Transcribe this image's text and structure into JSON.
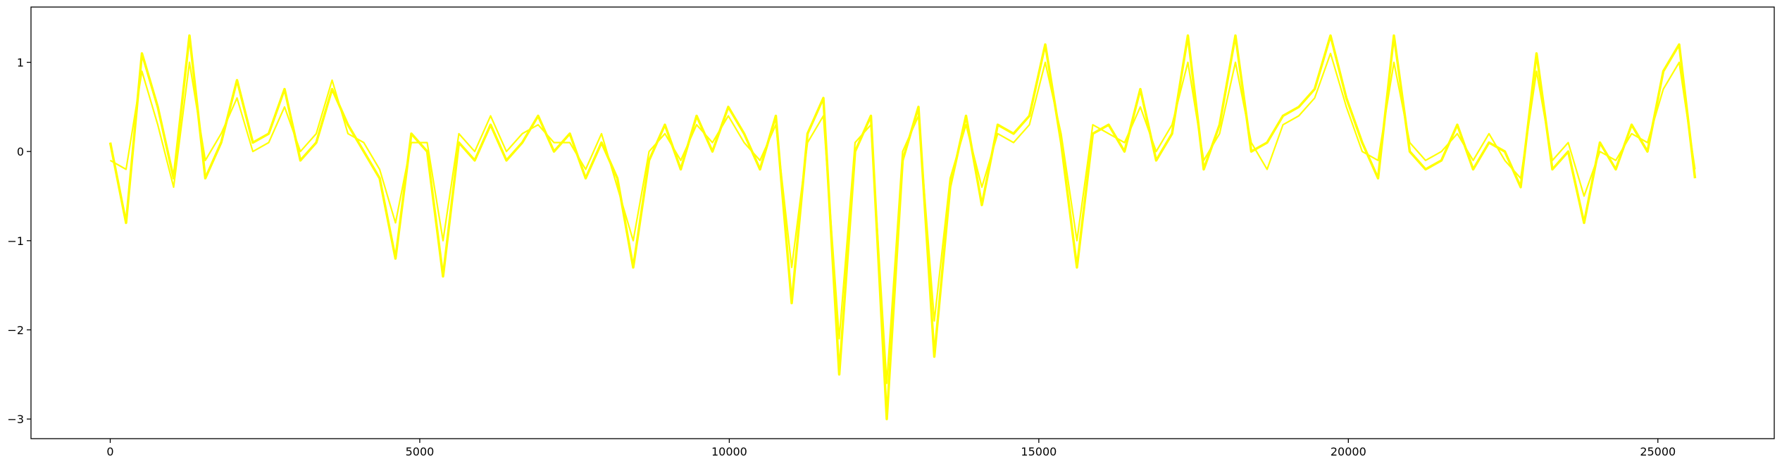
{
  "chart_data": {
    "type": "line",
    "x": [
      0,
      256,
      512,
      768,
      1024,
      1280,
      1536,
      1792,
      2048,
      2304,
      2560,
      2816,
      3072,
      3328,
      3584,
      3840,
      4096,
      4352,
      4608,
      4864,
      5120,
      5376,
      5632,
      5888,
      6144,
      6400,
      6656,
      6912,
      7168,
      7424,
      7680,
      7936,
      8192,
      8448,
      8704,
      8960,
      9216,
      9472,
      9728,
      9984,
      10240,
      10496,
      10752,
      11008,
      11264,
      11520,
      11776,
      12032,
      12288,
      12544,
      12800,
      13056,
      13312,
      13568,
      13824,
      14080,
      14336,
      14592,
      14848,
      15104,
      15360,
      15616,
      15872,
      16128,
      16384,
      16640,
      16896,
      17152,
      17408,
      17664,
      17920,
      18176,
      18432,
      18688,
      18944,
      19200,
      19456,
      19712,
      19968,
      20224,
      20480,
      20736,
      20992,
      21248,
      21504,
      21760,
      22016,
      22272,
      22528,
      22784,
      23040,
      23296,
      23552,
      23808,
      24064,
      24320,
      24576,
      24832,
      25088,
      25344,
      25600
    ],
    "series": [
      {
        "color": "#ffff00",
        "values": [
          0.1,
          -0.8,
          1.1,
          0.5,
          -0.3,
          1.3,
          -0.3,
          0.1,
          0.8,
          0.1,
          0.2,
          0.7,
          -0.1,
          0.1,
          0.7,
          0.3,
          0.0,
          -0.3,
          -1.2,
          0.2,
          0.0,
          -1.4,
          0.1,
          -0.1,
          0.3,
          -0.1,
          0.1,
          0.4,
          0.0,
          0.2,
          -0.3,
          0.1,
          -0.3,
          -1.3,
          -0.1,
          0.3,
          -0.2,
          0.4,
          0.0,
          0.5,
          0.2,
          -0.2,
          0.4,
          -1.7,
          0.2,
          0.6,
          -2.5,
          0.0,
          0.4,
          -3.0,
          -0.1,
          0.5,
          -2.3,
          -0.4,
          0.4,
          -0.6,
          0.3,
          0.2,
          0.4,
          1.2,
          0.1,
          -1.3,
          0.2,
          0.3,
          0.0,
          0.7,
          -0.1,
          0.2,
          1.3,
          -0.2,
          0.3,
          1.3,
          0.0,
          0.1,
          0.4,
          0.5,
          0.7,
          1.3,
          0.6,
          0.1,
          -0.3,
          1.3,
          0.0,
          -0.2,
          -0.1,
          0.3,
          -0.2,
          0.1,
          0.0,
          -0.4,
          1.1,
          -0.2,
          0.0,
          -0.8,
          0.1,
          -0.2,
          0.3,
          0.0,
          0.9,
          1.2,
          -0.3
        ]
      },
      {
        "color": "#ffff00",
        "values": [
          -0.1,
          -0.2,
          0.9,
          0.3,
          -0.4,
          1.0,
          -0.1,
          0.2,
          0.6,
          0.0,
          0.1,
          0.5,
          0.0,
          0.2,
          0.8,
          0.2,
          0.1,
          -0.2,
          -0.8,
          0.1,
          0.1,
          -1.0,
          0.2,
          0.0,
          0.4,
          0.0,
          0.2,
          0.3,
          0.1,
          0.1,
          -0.2,
          0.2,
          -0.4,
          -1.0,
          0.0,
          0.2,
          -0.1,
          0.3,
          0.1,
          0.4,
          0.1,
          -0.1,
          0.3,
          -1.3,
          0.1,
          0.4,
          -2.1,
          0.1,
          0.3,
          -2.6,
          0.0,
          0.4,
          -1.9,
          -0.3,
          0.3,
          -0.4,
          0.2,
          0.1,
          0.3,
          1.0,
          0.2,
          -1.0,
          0.3,
          0.2,
          0.1,
          0.5,
          0.0,
          0.3,
          1.0,
          -0.1,
          0.2,
          1.0,
          0.1,
          -0.2,
          0.3,
          0.4,
          0.6,
          1.1,
          0.5,
          0.0,
          -0.1,
          1.0,
          0.1,
          -0.1,
          0.0,
          0.2,
          -0.1,
          0.2,
          -0.1,
          -0.3,
          0.9,
          -0.1,
          0.1,
          -0.5,
          0.0,
          -0.1,
          0.2,
          0.1,
          0.7,
          1.0,
          -0.2
        ]
      }
    ],
    "xlim": [
      -1280,
      26880
    ],
    "ylim": [
      -3.22,
      1.62
    ],
    "xticks": [
      0,
      5000,
      10000,
      15000,
      20000,
      25000
    ],
    "yticks": [
      {
        "value": -3,
        "label": "−3"
      },
      {
        "value": -2,
        "label": "−2"
      },
      {
        "value": -1,
        "label": "−1"
      },
      0,
      1
    ]
  }
}
